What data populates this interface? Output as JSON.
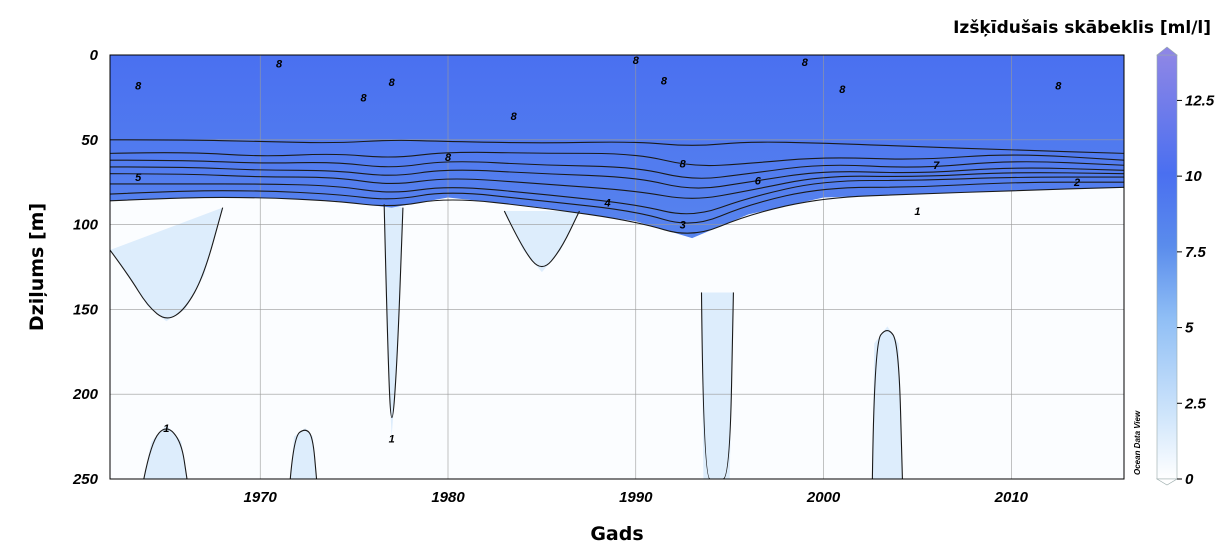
{
  "chart_data": {
    "type": "heatmap",
    "title": "",
    "xlabel": "Gads",
    "ylabel": "Dziļums [m]",
    "xlim": [
      1962,
      2016
    ],
    "ylim": [
      250,
      0
    ],
    "x_ticks": [
      "1970",
      "1980",
      "1990",
      "2000",
      "2010"
    ],
    "y_ticks": [
      "0",
      "50",
      "100",
      "150",
      "200",
      "250"
    ],
    "grid": true,
    "colorbar": {
      "label": "Izšķīdušais skābeklis [ml/l]",
      "range": [
        0,
        14
      ],
      "ticks": [
        "0",
        "2.5",
        "5",
        "7.5",
        "10",
        "12.5"
      ],
      "colors": [
        "#ffffff",
        "#cfe5fb",
        "#8fbef5",
        "#5a8cec",
        "#4a6ff0",
        "#8d86e6"
      ]
    },
    "field_layers": [
      {
        "value": 8.5,
        "description": "surface oxygen-rich layer"
      },
      {
        "value": 1.5,
        "description": "deep low-oxygen water"
      }
    ],
    "contour_levels": [
      1,
      2,
      3,
      4,
      5,
      6,
      7,
      8
    ],
    "contour_labels": [
      {
        "text": "8",
        "x": 1963.5,
        "y": 18
      },
      {
        "text": "8",
        "x": 1971.0,
        "y": 5
      },
      {
        "text": "8",
        "x": 1975.5,
        "y": 25
      },
      {
        "text": "8",
        "x": 1977.0,
        "y": 16
      },
      {
        "text": "8",
        "x": 1983.5,
        "y": 36
      },
      {
        "text": "8",
        "x": 1980.0,
        "y": 60
      },
      {
        "text": "8",
        "x": 1990.0,
        "y": 3
      },
      {
        "text": "8",
        "x": 1991.5,
        "y": 15
      },
      {
        "text": "8",
        "x": 1992.5,
        "y": 64
      },
      {
        "text": "8",
        "x": 1999.0,
        "y": 4
      },
      {
        "text": "8",
        "x": 2001.0,
        "y": 20
      },
      {
        "text": "8",
        "x": 2012.5,
        "y": 18
      },
      {
        "text": "7",
        "x": 2006.0,
        "y": 65
      },
      {
        "text": "6",
        "x": 1996.5,
        "y": 74
      },
      {
        "text": "5",
        "x": 1963.5,
        "y": 72
      },
      {
        "text": "4",
        "x": 1988.5,
        "y": 87
      },
      {
        "text": "3",
        "x": 1992.5,
        "y": 100
      },
      {
        "text": "2",
        "x": 2013.5,
        "y": 75
      },
      {
        "text": "1",
        "x": 2005.0,
        "y": 92
      },
      {
        "text": "1",
        "x": 1965.0,
        "y": 220
      },
      {
        "text": "1",
        "x": 1977.0,
        "y": 226
      }
    ],
    "contour_lines": [
      {
        "level": 8,
        "x": [
          1962,
          1966,
          1970,
          1974,
          1977,
          1980,
          1985,
          1990,
          1993,
          1996,
          2000,
          2005,
          2010,
          2016
        ],
        "y": [
          50,
          50,
          51,
          52,
          50,
          51,
          52,
          51,
          54,
          51,
          52,
          54,
          56,
          58
        ]
      },
      {
        "level": 7,
        "x": [
          1962,
          1966,
          1970,
          1974,
          1977,
          1980,
          1985,
          1990,
          1993,
          1996,
          2000,
          2005,
          2010,
          2016
        ],
        "y": [
          58,
          57,
          60,
          58,
          61,
          57,
          58,
          58,
          66,
          64,
          60,
          62,
          58,
          62
        ]
      },
      {
        "level": 6,
        "x": [
          1962,
          1966,
          1970,
          1974,
          1977,
          1980,
          1985,
          1990,
          1993,
          1996,
          2000,
          2005,
          2010,
          2016
        ],
        "y": [
          62,
          62,
          64,
          63,
          67,
          62,
          65,
          66,
          74,
          70,
          64,
          67,
          62,
          65
        ]
      },
      {
        "level": 5,
        "x": [
          1962,
          1966,
          1970,
          1974,
          1977,
          1980,
          1985,
          1990,
          1993,
          1996,
          2000,
          2005,
          2010,
          2016
        ],
        "y": [
          66,
          66,
          68,
          68,
          72,
          67,
          70,
          72,
          80,
          75,
          68,
          70,
          66,
          68
        ]
      },
      {
        "level": 4,
        "x": [
          1962,
          1966,
          1970,
          1974,
          1977,
          1980,
          1985,
          1990,
          1993,
          1996,
          2000,
          2005,
          2010,
          2016
        ],
        "y": [
          70,
          70,
          72,
          72,
          77,
          72,
          76,
          80,
          86,
          80,
          71,
          72,
          69,
          70
        ]
      },
      {
        "level": 3,
        "x": [
          1962,
          1966,
          1970,
          1974,
          1977,
          1980,
          1985,
          1990,
          1993,
          1996,
          2000,
          2005,
          2010,
          2016
        ],
        "y": [
          76,
          76,
          76,
          77,
          82,
          77,
          82,
          88,
          96,
          84,
          74,
          74,
          72,
          72
        ]
      },
      {
        "level": 2,
        "x": [
          1962,
          1966,
          1970,
          1974,
          1977,
          1980,
          1985,
          1990,
          1993,
          1996,
          2000,
          2005,
          2010,
          2016
        ],
        "y": [
          82,
          80,
          80,
          82,
          86,
          80,
          86,
          92,
          102,
          88,
          78,
          78,
          75,
          75
        ]
      },
      {
        "level": 1,
        "x": [
          1962,
          1966,
          1970,
          1974,
          1977,
          1980,
          1985,
          1990,
          1993,
          1996,
          2000,
          2005,
          2010,
          2016
        ],
        "y": [
          86,
          84,
          84,
          86,
          90,
          84,
          90,
          98,
          108,
          94,
          84,
          82,
          80,
          78
        ]
      },
      {
        "level": 1,
        "x": [
          1962,
          1963,
          1964,
          1965,
          1966,
          1967,
          1968
        ],
        "y": [
          115,
          130,
          148,
          157,
          150,
          130,
          90
        ]
      },
      {
        "level": 1,
        "x": [
          1976.6,
          1976.8,
          1977.0,
          1977.3,
          1977.6
        ],
        "y": [
          88,
          180,
          225,
          180,
          90
        ]
      },
      {
        "level": 1,
        "x": [
          1983,
          1984,
          1985,
          1986,
          1987
        ],
        "y": [
          92,
          115,
          128,
          115,
          92
        ]
      },
      {
        "level": 1,
        "x": [
          1993.5,
          1993.6,
          1994.3,
          1995.0,
          1995.2
        ],
        "y": [
          140,
          250,
          250,
          250,
          140
        ]
      },
      {
        "level": 1,
        "x": [
          2002.6,
          2002.7,
          2003.4,
          2004.0,
          2004.2
        ],
        "y": [
          250,
          170,
          160,
          170,
          250
        ]
      },
      {
        "level": 1,
        "x": [
          1963.8,
          1964.2,
          1965.0,
          1965.8,
          1966.1
        ],
        "y": [
          250,
          228,
          218,
          228,
          250
        ]
      },
      {
        "level": 1,
        "x": [
          1971.6,
          1971.8,
          1972.4,
          1972.8,
          1973.0
        ],
        "y": [
          250,
          225,
          220,
          225,
          250
        ]
      }
    ],
    "annotations": [
      "Ocean Data View"
    ]
  }
}
